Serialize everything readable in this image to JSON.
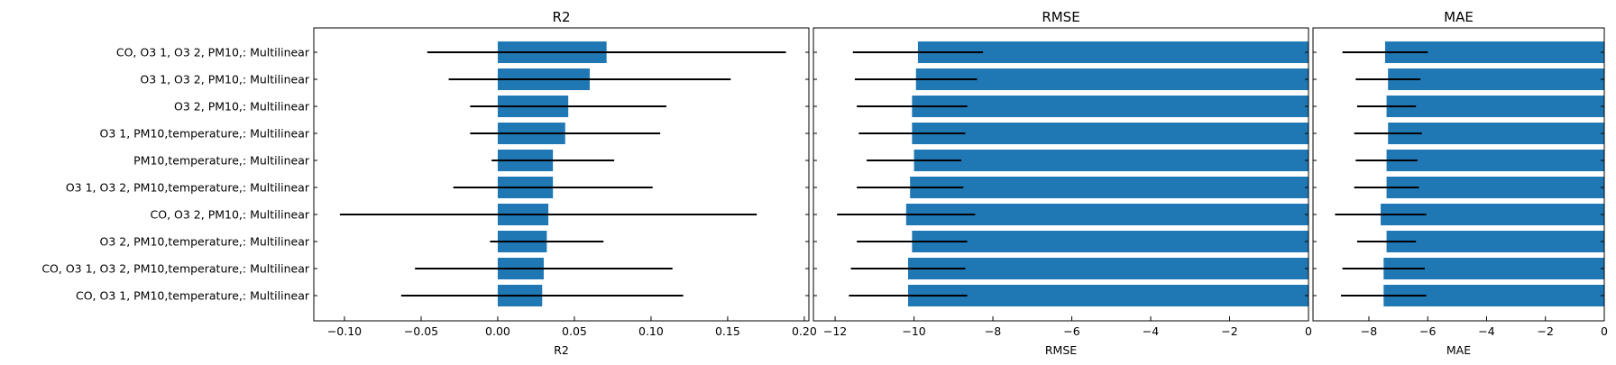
{
  "chart_data": {
    "type": "bar",
    "orientation": "horizontal",
    "bar_color": "#1f77b4",
    "errorbar_color": "#000000",
    "categories": [
      "CO, O3 1, O3 2, PM10,: Multilinear",
      "O3 1, O3 2, PM10,: Multilinear",
      "O3 2, PM10,: Multilinear",
      "O3 1, PM10,temperature,: Multilinear",
      "PM10,temperature,: Multilinear",
      "O3 1, O3 2, PM10,temperature,: Multilinear",
      "CO, O3 2, PM10,: Multilinear",
      "O3 2, PM10,temperature,: Multilinear",
      "CO, O3 1, O3 2, PM10,temperature,: Multilinear",
      "CO, O3 1, PM10,temperature,: Multilinear"
    ],
    "panels": [
      {
        "title": "R2",
        "xlabel": "R2",
        "xlim": [
          -0.12,
          0.203
        ],
        "ticks": [
          -0.1,
          -0.05,
          0.0,
          0.05,
          0.1,
          0.15,
          0.2
        ],
        "tick_labels": [
          "−0.10",
          "−0.05",
          "0.00",
          "0.05",
          "0.10",
          "0.15",
          "0.20"
        ],
        "values": [
          0.071,
          0.06,
          0.046,
          0.044,
          0.036,
          0.036,
          0.033,
          0.032,
          0.03,
          0.029
        ],
        "errors": [
          0.117,
          0.092,
          0.064,
          0.062,
          0.04,
          0.065,
          0.136,
          0.037,
          0.084,
          0.092
        ]
      },
      {
        "title": "RMSE",
        "xlabel": "RMSE",
        "xlim": [
          -12.55,
          0
        ],
        "ticks": [
          -12,
          -10,
          -8,
          -6,
          -4,
          -2,
          0
        ],
        "tick_labels": [
          "−12",
          "−10",
          "−8",
          "−6",
          "−4",
          "−2",
          "0"
        ],
        "values": [
          -9.9,
          -9.95,
          -10.05,
          -10.05,
          -10.0,
          -10.1,
          -10.2,
          -10.05,
          -10.15,
          -10.15
        ],
        "errors": [
          1.65,
          1.55,
          1.4,
          1.35,
          1.2,
          1.35,
          1.75,
          1.4,
          1.45,
          1.5
        ]
      },
      {
        "title": "MAE",
        "xlabel": "MAE",
        "xlim": [
          -9.9,
          0
        ],
        "ticks": [
          -8,
          -6,
          -4,
          -2,
          0
        ],
        "tick_labels": [
          "−8",
          "−6",
          "−4",
          "−2",
          "0"
        ],
        "values": [
          -7.45,
          -7.35,
          -7.4,
          -7.35,
          -7.4,
          -7.4,
          -7.6,
          -7.4,
          -7.5,
          -7.5
        ],
        "errors": [
          1.45,
          1.1,
          1.0,
          1.15,
          1.05,
          1.1,
          1.55,
          1.0,
          1.4,
          1.45
        ]
      }
    ]
  }
}
